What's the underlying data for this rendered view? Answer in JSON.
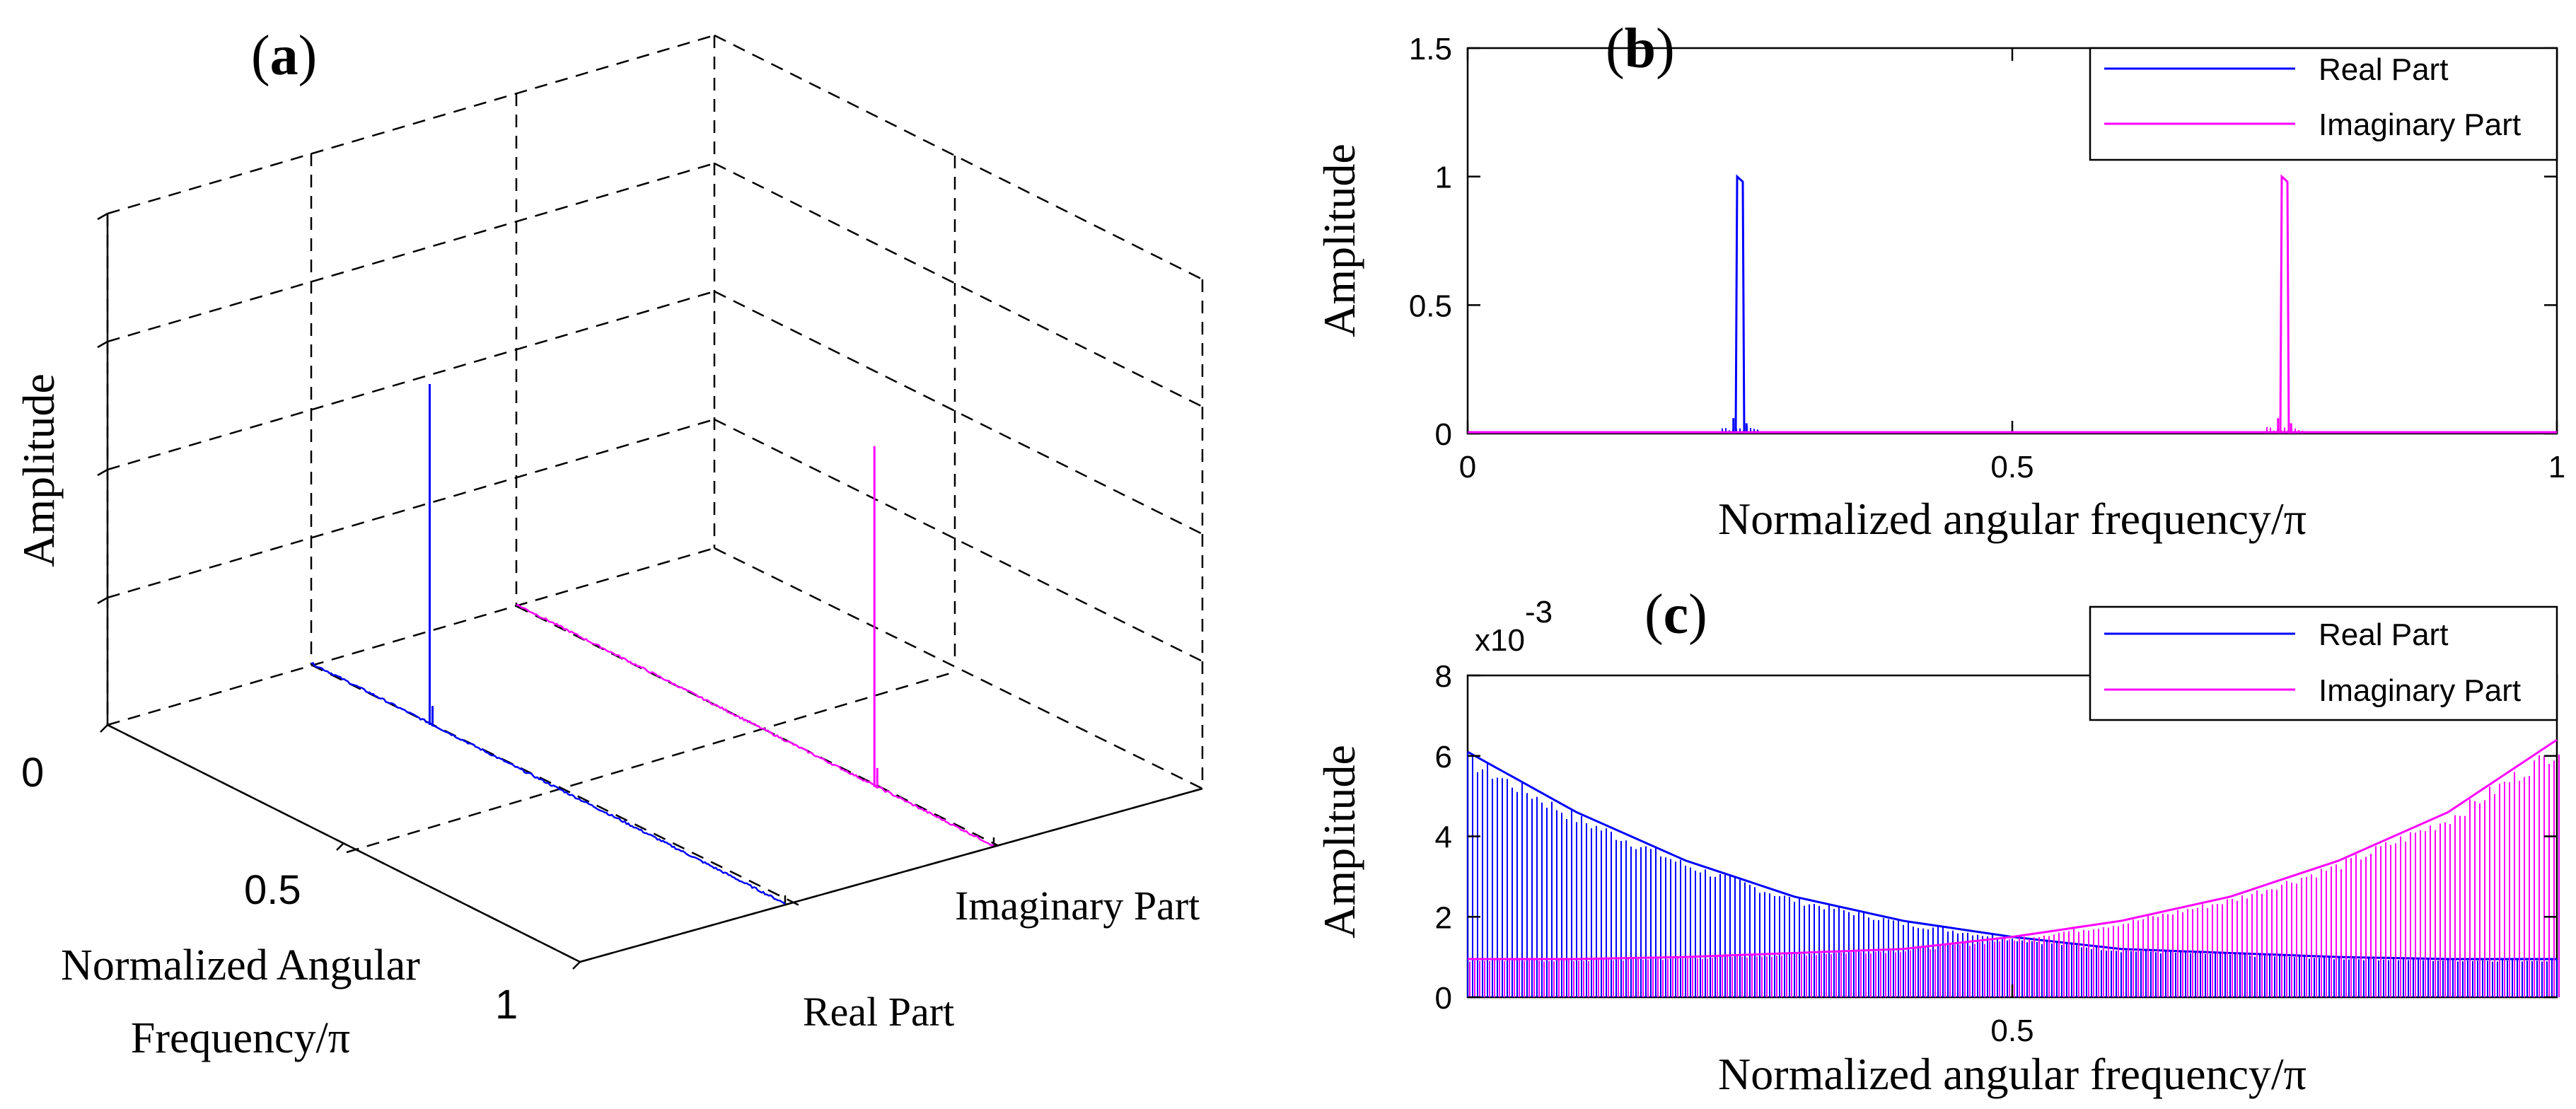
{
  "figure": {
    "panels": {
      "a": {
        "label": "a",
        "ylabel": "Amplitude",
        "xlabel_line1": "Normalized Angular",
        "xlabel_line2": "Frequency/π",
        "freq_ticks": [
          "0",
          "0.5",
          "1"
        ],
        "part_labels": [
          "Imaginary Part",
          "Real Part"
        ]
      },
      "b": {
        "label": "b",
        "xlabel": "Normalized angular frequency/π",
        "ylabel": "Amplitude",
        "x_ticks": [
          "0",
          "0.5",
          "1"
        ],
        "y_ticks": [
          "0",
          "0.5",
          "1",
          "1.5"
        ],
        "legend": [
          "Real Part",
          "Imaginary Part"
        ]
      },
      "c": {
        "label": "c",
        "xlabel": "Normalized angular frequency/π",
        "ylabel": "Amplitude",
        "x_ticks": [
          "0.5"
        ],
        "y_ticks": [
          "0",
          "2",
          "4",
          "6",
          "8"
        ],
        "exponent_base": "x10",
        "exponent_power": "-3",
        "legend": [
          "Real Part",
          "Imaginary Part"
        ]
      }
    }
  },
  "chart_data": [
    {
      "id": "a",
      "type": "line",
      "projection": "3d",
      "title": "(a)",
      "ylabel": "Amplitude",
      "xlabel": "Normalized Angular Frequency/π",
      "categories": [
        "Imaginary Part",
        "Real Part"
      ],
      "series": [
        {
          "name": "Real Part",
          "color": "#0000ff",
          "x": [
            0,
            0.25,
            0.251,
            0.26,
            1
          ],
          "values": [
            0.002,
            1.0,
            0.05,
            0.003,
            0.002
          ]
        },
        {
          "name": "Imaginary Part",
          "color": "#ff00ff",
          "x": [
            0,
            0.75,
            0.751,
            0.76,
            1
          ],
          "values": [
            0.002,
            1.0,
            0.05,
            0.003,
            0.002
          ]
        }
      ],
      "xlim": [
        0,
        1
      ],
      "zlim": [
        0,
        1.5
      ]
    },
    {
      "id": "b",
      "type": "line",
      "title": "(b)",
      "xlabel": "Normalized angular frequency/π",
      "ylabel": "Amplitude",
      "xlim": [
        0,
        1
      ],
      "ylim": [
        0,
        1.5
      ],
      "x_ticks": [
        0,
        0.5,
        1
      ],
      "y_ticks": [
        0,
        0.5,
        1,
        1.5
      ],
      "legend_position": "top-right",
      "series": [
        {
          "name": "Real Part",
          "color": "#0000ff",
          "peak_x": 0.25,
          "peak_y": 1.0,
          "side_x": [
            0.244,
            0.256
          ],
          "side_y": [
            0.06,
            0.04
          ],
          "baseline": 0.005
        },
        {
          "name": "Imaginary Part",
          "color": "#ff00ff",
          "peak_x": 0.75,
          "peak_y": 1.0,
          "side_x": [
            0.744,
            0.756
          ],
          "side_y": [
            0.06,
            0.04
          ],
          "baseline": 0.005
        }
      ]
    },
    {
      "id": "c",
      "type": "line",
      "title": "(c)",
      "xlabel": "Normalized angular frequency/π",
      "ylabel": "Amplitude",
      "y_scale_label": "x10^-3",
      "xlim": [
        0,
        1
      ],
      "ylim": [
        0,
        8
      ],
      "x_ticks": [
        0.5
      ],
      "y_ticks": [
        0,
        2,
        4,
        6,
        8
      ],
      "legend_position": "top-right",
      "series": [
        {
          "name": "Real Part",
          "color": "#0000ff",
          "x": [
            0,
            0.1,
            0.2,
            0.3,
            0.4,
            0.5,
            0.6,
            0.7,
            0.8,
            0.9,
            1.0
          ],
          "values": [
            6.1,
            4.6,
            3.4,
            2.5,
            1.9,
            1.5,
            1.2,
            1.1,
            1.0,
            0.95,
            0.95
          ]
        },
        {
          "name": "Imaginary Part",
          "color": "#ff00ff",
          "x": [
            0,
            0.1,
            0.2,
            0.3,
            0.4,
            0.5,
            0.6,
            0.7,
            0.8,
            0.9,
            1.0
          ],
          "values": [
            0.95,
            0.95,
            1.0,
            1.1,
            1.2,
            1.5,
            1.9,
            2.5,
            3.4,
            4.6,
            6.4
          ]
        }
      ]
    }
  ]
}
